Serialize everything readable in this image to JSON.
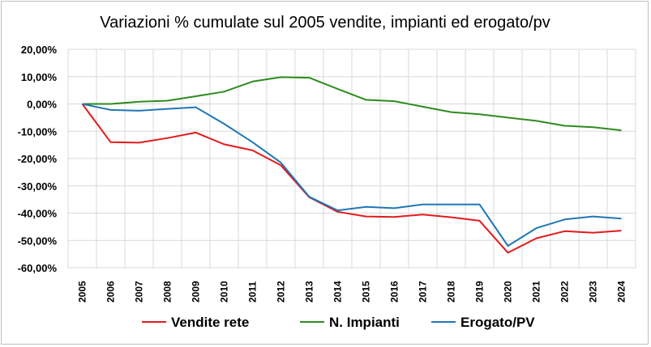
{
  "chart_data": {
    "type": "line",
    "title": "Variazioni % cumulate sul 2005 vendite, impianti ed erogato/pv",
    "xlabel": "",
    "ylabel": "",
    "categories": [
      "2005",
      "2006",
      "2007",
      "2008",
      "2009",
      "2010",
      "2011",
      "2012",
      "2013",
      "2014",
      "2015",
      "2016",
      "2017",
      "2018",
      "2019",
      "2020",
      "2021",
      "2022",
      "2023",
      "2024"
    ],
    "ylim": [
      -60,
      20
    ],
    "yticks": [
      20,
      10,
      0,
      -10,
      -20,
      -30,
      -40,
      -50,
      -60
    ],
    "ytick_labels": [
      "20,00%",
      "10,00%",
      "0,00%",
      "-10,00%",
      "-20,00%",
      "-30,00%",
      "-40,00%",
      "-50,00%",
      "-60,00%"
    ],
    "grid": true,
    "legend": "bottom",
    "series": [
      {
        "name": "Vendite rete",
        "color": "#e31a1c",
        "values": [
          0,
          -14,
          -14.2,
          -12.5,
          -10.5,
          -14.8,
          -17,
          -22.5,
          -34.2,
          -39.5,
          -41.2,
          -41.4,
          -40.5,
          -41.5,
          -42.8,
          -54.5,
          -49.2,
          -46.6,
          -47.2,
          -46.4
        ]
      },
      {
        "name": "N. Impianti",
        "color": "#2e8b1e",
        "values": [
          0,
          0,
          0.8,
          1.2,
          2.8,
          4.5,
          8.2,
          9.8,
          9.6,
          5.5,
          1.5,
          1,
          -1,
          -3,
          -3.8,
          -5,
          -6.2,
          -8,
          -8.5,
          -9.7
        ]
      },
      {
        "name": "Erogato/PV",
        "color": "#1f77b4",
        "values": [
          0,
          -2.2,
          -2.5,
          -1.8,
          -1.2,
          -7.3,
          -14,
          -21.5,
          -34,
          -39,
          -37.7,
          -38.2,
          -36.8,
          -36.8,
          -36.8,
          -52,
          -45.5,
          -42.3,
          -41.2,
          -42
        ]
      }
    ]
  }
}
